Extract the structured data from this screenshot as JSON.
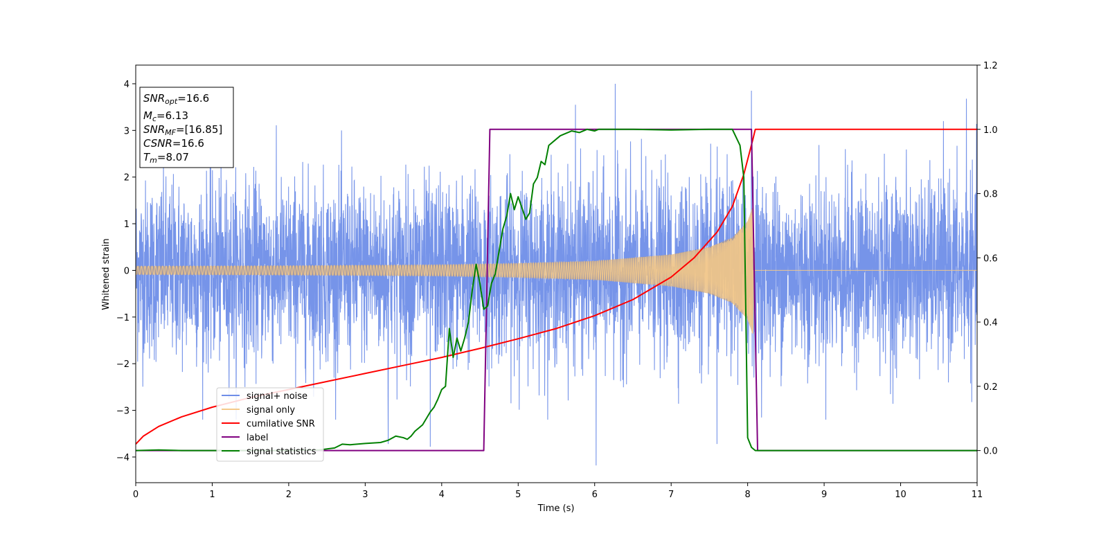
{
  "chart_data": {
    "type": "line",
    "xlabel": "Time (s)",
    "ylabel": "Whitened strain",
    "xlim": [
      0,
      11
    ],
    "ylim": [
      -4.55,
      4.4
    ],
    "y2lim": [
      -0.1,
      1.2
    ],
    "x_ticks": [
      "0",
      "1",
      "2",
      "3",
      "4",
      "5",
      "6",
      "7",
      "8",
      "9",
      "10",
      "11"
    ],
    "y_ticks": [
      "−4",
      "−3",
      "−2",
      "−1",
      "0",
      "1",
      "2",
      "3",
      "4"
    ],
    "y2_ticks": [
      "0.0",
      "0.2",
      "0.4",
      "0.6",
      "0.8",
      "1.0",
      "1.2"
    ],
    "info_box": {
      "snr_opt": {
        "sym": "SNR",
        "sub": "opt",
        "value": "=16.6"
      },
      "mc": {
        "sym": "M",
        "sub": "c",
        "value": "=6.13"
      },
      "snr_mf": {
        "sym": "SNR",
        "sub": "MF",
        "value": "=[16.85]"
      },
      "csnr": {
        "sym": "CSNR",
        "value": "=16.6"
      },
      "tm": {
        "sym": "T",
        "sub": "m",
        "value": "=8.07"
      }
    },
    "legend": {
      "placement": "lower-left"
    },
    "series": [
      {
        "name": "signal+ noise",
        "color": "#6f8ee8",
        "axis": "left",
        "kind": "noise",
        "x_range": [
          0,
          11
        ],
        "std": 0.95,
        "peaks": [
          [
            6.27,
            4.0
          ],
          [
            6.02,
            -4.18
          ],
          [
            10.86,
            3.68
          ],
          [
            5.75,
            3.55
          ],
          [
            3.85,
            -3.78
          ],
          [
            7.6,
            -3.72
          ],
          [
            3.3,
            -3.72
          ],
          [
            8.05,
            3.85
          ]
        ]
      },
      {
        "name": "signal only",
        "color": "#f5c98a",
        "axis": "left",
        "kind": "chirp",
        "x_range": [
          0,
          11
        ],
        "merger_time": 8.07,
        "amplitude_envelope": [
          [
            0.0,
            0.09
          ],
          [
            2.0,
            0.1
          ],
          [
            4.0,
            0.12
          ],
          [
            5.0,
            0.15
          ],
          [
            6.0,
            0.2
          ],
          [
            7.0,
            0.34
          ],
          [
            7.5,
            0.5
          ],
          [
            7.8,
            0.7
          ],
          [
            8.0,
            1.05
          ],
          [
            8.07,
            1.4
          ],
          [
            8.1,
            0.0
          ],
          [
            11.0,
            0.0
          ]
        ]
      },
      {
        "name": "cumilative SNR",
        "color": "#ff0000",
        "axis": "right",
        "x": [
          0.0,
          0.1,
          0.3,
          0.6,
          1.0,
          1.5,
          2.0,
          2.5,
          3.0,
          3.5,
          4.0,
          4.5,
          5.0,
          5.5,
          6.0,
          6.5,
          7.0,
          7.3,
          7.6,
          7.8,
          7.95,
          8.07,
          8.1,
          9.0,
          10.0,
          11.0
        ],
        "y": [
          0.02,
          0.045,
          0.075,
          0.105,
          0.135,
          0.165,
          0.19,
          0.215,
          0.24,
          0.265,
          0.29,
          0.318,
          0.348,
          0.38,
          0.42,
          0.47,
          0.54,
          0.6,
          0.68,
          0.76,
          0.86,
          0.97,
          1.0,
          1.0,
          1.0,
          1.0
        ]
      },
      {
        "name": "label",
        "color": "#800080",
        "axis": "right",
        "x": [
          0.0,
          4.55,
          4.63,
          8.05,
          8.13,
          11.0
        ],
        "y": [
          0.0,
          0.0,
          1.0,
          1.0,
          0.0,
          0.0
        ]
      },
      {
        "name": "signal statistics",
        "color": "#008000",
        "axis": "right",
        "x": [
          0.0,
          0.3,
          0.6,
          1.0,
          1.5,
          2.0,
          2.4,
          2.6,
          2.7,
          2.8,
          3.0,
          3.2,
          3.3,
          3.4,
          3.5,
          3.55,
          3.6,
          3.65,
          3.7,
          3.75,
          3.8,
          3.85,
          3.9,
          3.95,
          4.0,
          4.05,
          4.1,
          4.15,
          4.2,
          4.25,
          4.3,
          4.35,
          4.4,
          4.45,
          4.5,
          4.55,
          4.6,
          4.65,
          4.7,
          4.75,
          4.8,
          4.85,
          4.9,
          4.95,
          5.0,
          5.1,
          5.15,
          5.2,
          5.25,
          5.3,
          5.35,
          5.4,
          5.45,
          5.5,
          5.55,
          5.6,
          5.7,
          5.8,
          5.9,
          6.0,
          6.05,
          6.1,
          6.2,
          6.3,
          6.5,
          7.0,
          7.5,
          7.8,
          7.9,
          7.95,
          8.0,
          8.05,
          8.1,
          9.0,
          10.0,
          11.0
        ],
        "y": [
          0.0,
          0.002,
          0.0,
          0.0,
          0.0,
          0.0,
          0.002,
          0.008,
          0.02,
          0.018,
          0.022,
          0.025,
          0.032,
          0.045,
          0.04,
          0.035,
          0.045,
          0.06,
          0.07,
          0.08,
          0.1,
          0.12,
          0.135,
          0.16,
          0.19,
          0.2,
          0.38,
          0.29,
          0.35,
          0.31,
          0.35,
          0.4,
          0.5,
          0.58,
          0.52,
          0.44,
          0.45,
          0.52,
          0.55,
          0.62,
          0.69,
          0.73,
          0.8,
          0.75,
          0.79,
          0.72,
          0.74,
          0.83,
          0.85,
          0.9,
          0.89,
          0.95,
          0.96,
          0.97,
          0.98,
          0.985,
          0.995,
          0.99,
          1.0,
          0.995,
          1.0,
          1.0,
          1.0,
          1.0,
          1.0,
          0.998,
          1.0,
          1.0,
          0.95,
          0.85,
          0.04,
          0.01,
          0.0,
          0.0,
          0.0,
          0.0
        ]
      }
    ]
  }
}
